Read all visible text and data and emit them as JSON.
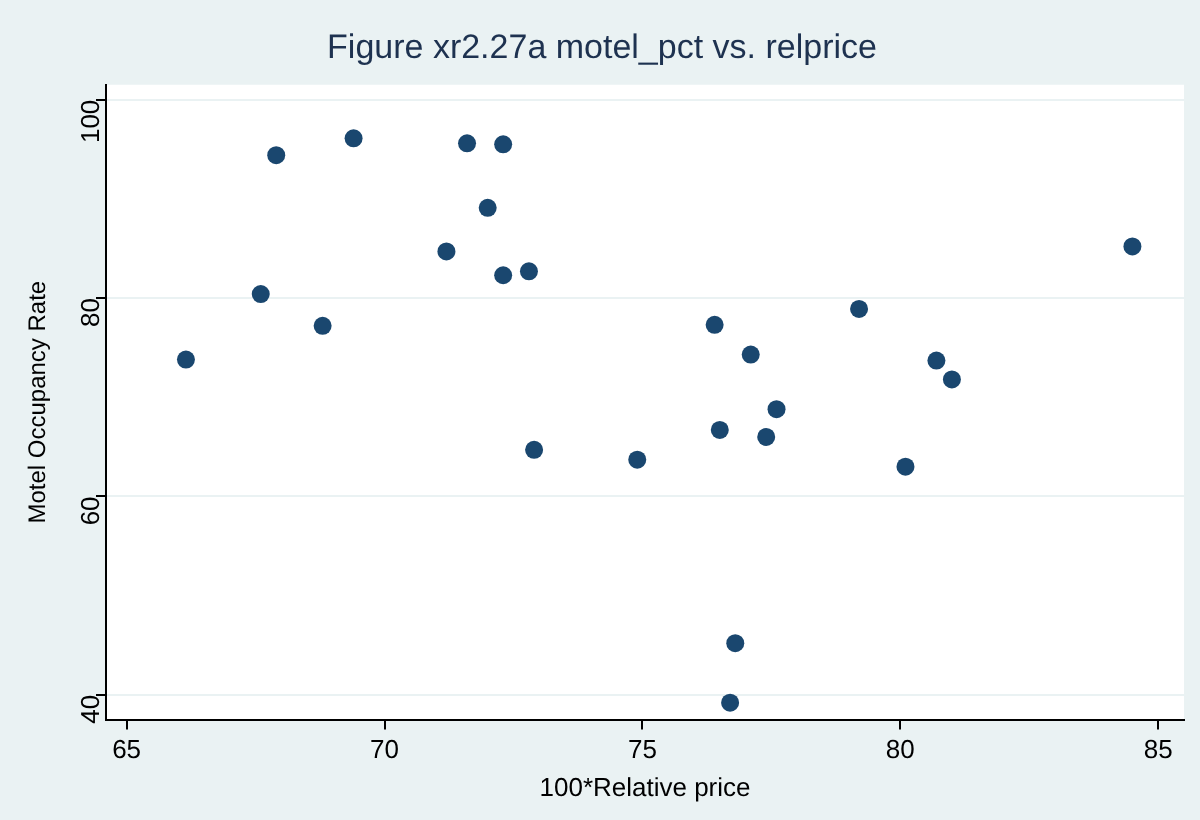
{
  "chart_data": {
    "type": "scatter",
    "title": "Figure xr2.27a motel_pct vs. relprice",
    "xlabel": "100*Relative price",
    "ylabel": "Motel Occupancy Rate",
    "x": [
      66.15,
      67.6,
      67.9,
      68.8,
      69.4,
      71.2,
      71.6,
      72.0,
      72.3,
      72.3,
      72.8,
      72.9,
      74.9,
      76.4,
      76.5,
      77.1,
      77.4,
      77.6,
      76.8,
      76.7,
      79.2,
      80.1,
      80.7,
      81.0,
      84.5
    ],
    "series": [
      {
        "color": "#1a476f",
        "values": [
          73.8,
          80.4,
          94.4,
          77.2,
          96.1,
          84.7,
          95.6,
          89.1,
          95.5,
          82.3,
          82.7,
          64.7,
          63.7,
          77.3,
          66.7,
          74.3,
          66.0,
          68.8,
          45.2,
          39.2,
          78.9,
          63.0,
          73.7,
          71.8,
          85.2
        ]
      }
    ],
    "xlim": [
      64.6,
      85.5
    ],
    "xticks": [
      65,
      70,
      75,
      80,
      85
    ],
    "ylim": [
      37.5,
      101.5
    ],
    "yticks": [
      40,
      60,
      80,
      100
    ],
    "grid": "y",
    "legend": false,
    "marker": "circle"
  }
}
